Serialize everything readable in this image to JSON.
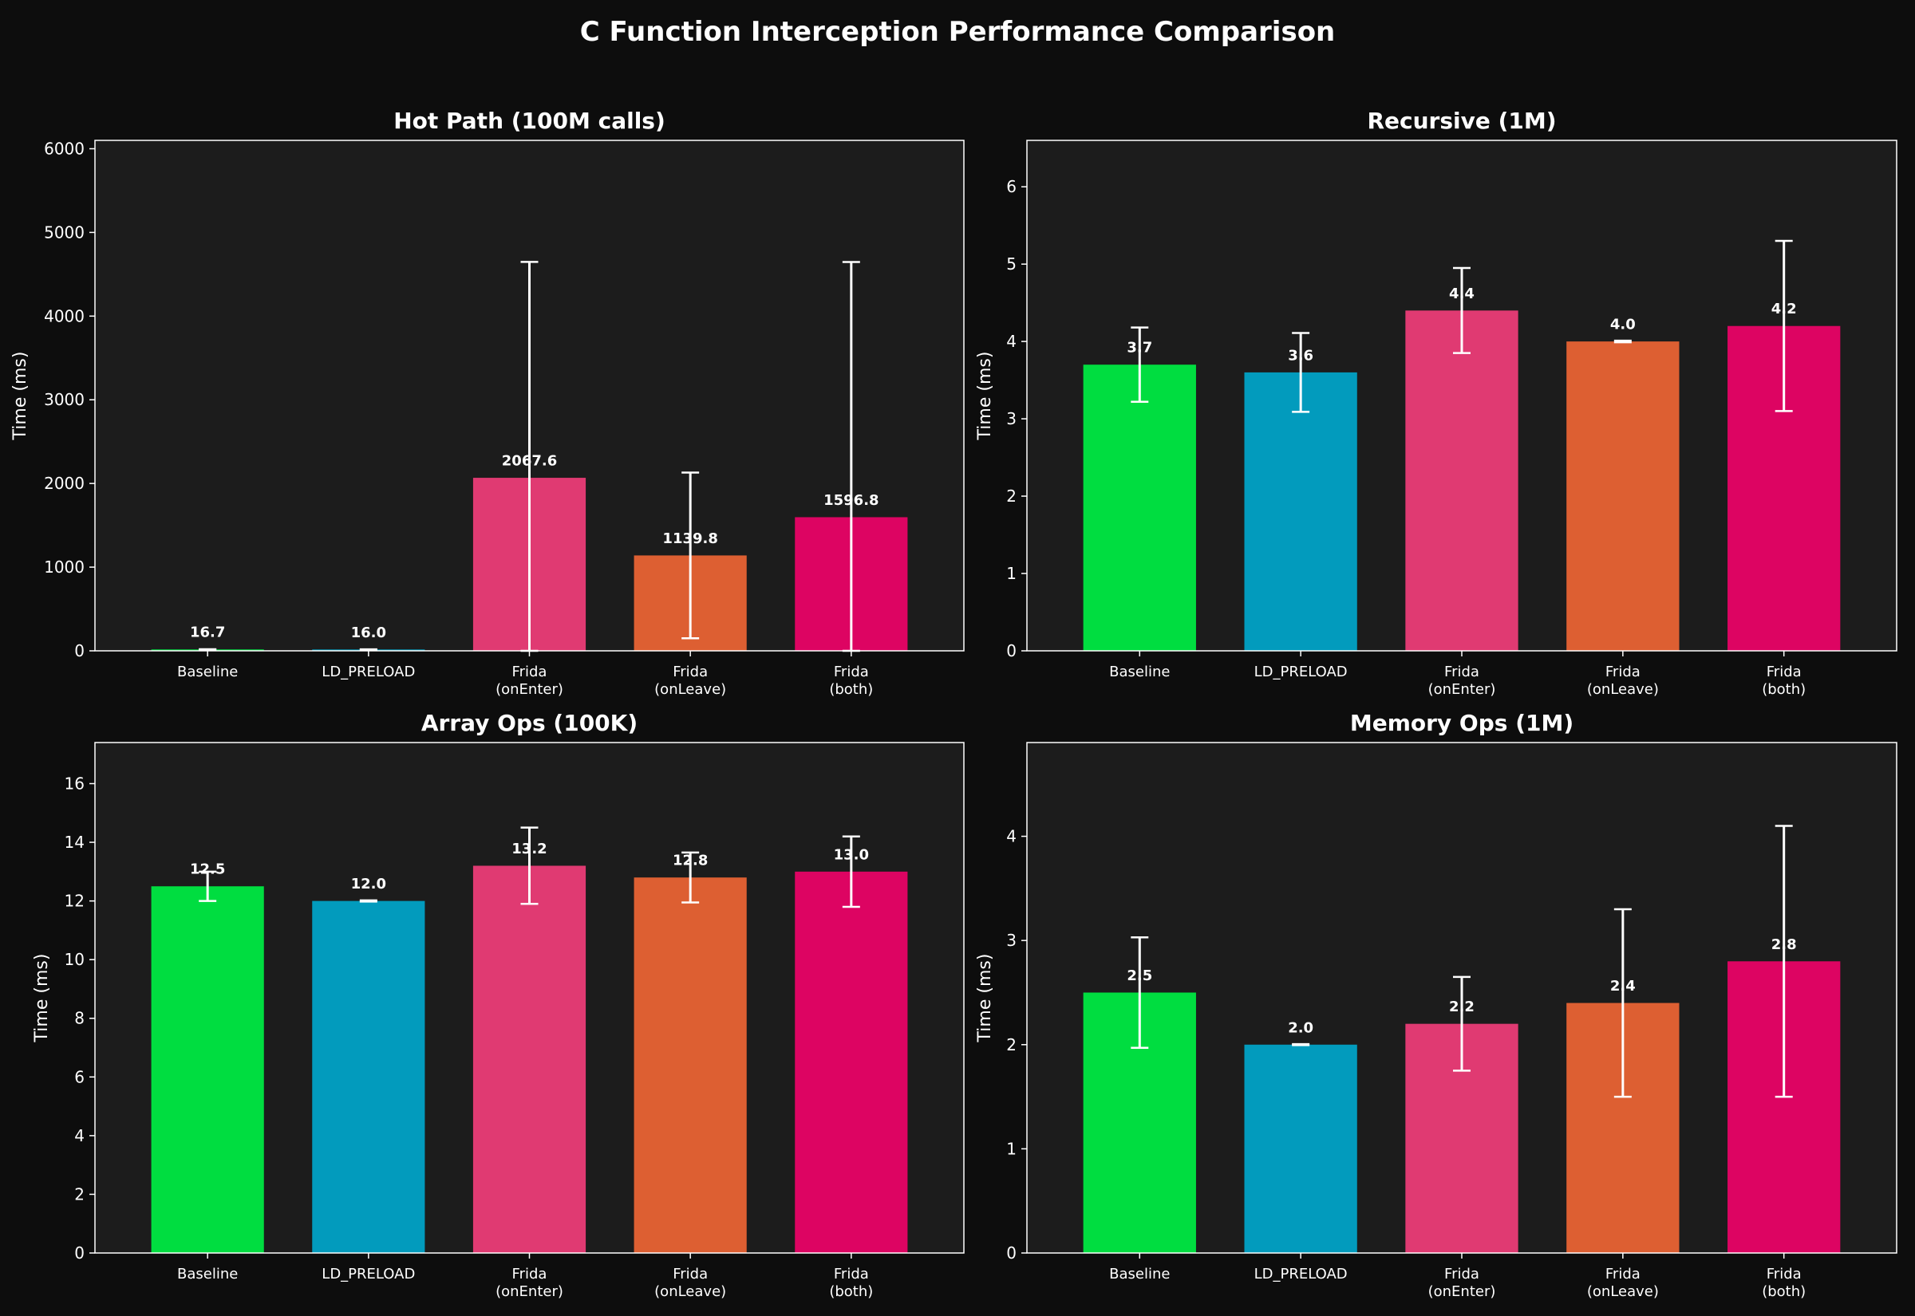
{
  "figure": {
    "title": "C Function Interception Performance Comparison",
    "background": "#0d0d0d",
    "axes_background": "#1c1c1c",
    "text_color": "#ffffff"
  },
  "chart_data": [
    {
      "type": "bar",
      "title": "Hot Path (100M calls)",
      "xlabel": "",
      "ylabel": "Time (ms)",
      "categories": [
        "Baseline",
        "LD_PRELOAD",
        "Frida\n(onEnter)",
        "Frida\n(onLeave)",
        "Frida\n(both)"
      ],
      "values": [
        16.7,
        16.0,
        2067.6,
        1139.8,
        1596.8
      ],
      "errors": [
        2,
        2,
        2580,
        990,
        3050
      ],
      "value_labels": [
        "16.7",
        "16.0",
        "2067.6",
        "1139.8",
        "1596.8"
      ],
      "colors": [
        "#00dd40",
        "#029bbd",
        "#e03a72",
        "#dd5f32",
        "#dd0462"
      ],
      "ylim": [
        0,
        6100
      ],
      "yticks": [
        0,
        1000,
        2000,
        3000,
        4000,
        5000,
        6000
      ],
      "grid": false,
      "legend": "none"
    },
    {
      "type": "bar",
      "title": "Recursive (1M)",
      "xlabel": "",
      "ylabel": "Time (ms)",
      "categories": [
        "Baseline",
        "LD_PRELOAD",
        "Frida\n(onEnter)",
        "Frida\n(onLeave)",
        "Frida\n(both)"
      ],
      "values": [
        3.7,
        3.6,
        4.4,
        4.0,
        4.2
      ],
      "errors": [
        0.48,
        0.51,
        0.55,
        0.01,
        1.1
      ],
      "value_labels": [
        "3.7",
        "3.6",
        "4.4",
        "4.0",
        "4.2"
      ],
      "colors": [
        "#00dd40",
        "#029bbd",
        "#e03a72",
        "#dd5f32",
        "#dd0462"
      ],
      "ylim": [
        0,
        6.6
      ],
      "yticks": [
        0,
        1,
        2,
        3,
        4,
        5,
        6
      ],
      "grid": false,
      "legend": "none"
    },
    {
      "type": "bar",
      "title": "Array Ops (100K)",
      "xlabel": "",
      "ylabel": "Time (ms)",
      "categories": [
        "Baseline",
        "LD_PRELOAD",
        "Frida\n(onEnter)",
        "Frida\n(onLeave)",
        "Frida\n(both)"
      ],
      "values": [
        12.5,
        12.0,
        13.2,
        12.8,
        13.0
      ],
      "errors": [
        0.5,
        0.02,
        1.3,
        0.85,
        1.2
      ],
      "value_labels": [
        "12.5",
        "12.0",
        "13.2",
        "12.8",
        "13.0"
      ],
      "colors": [
        "#00dd40",
        "#029bbd",
        "#e03a72",
        "#dd5f32",
        "#dd0462"
      ],
      "ylim": [
        0,
        17.4
      ],
      "yticks": [
        0,
        2,
        4,
        6,
        8,
        10,
        12,
        14,
        16
      ],
      "grid": false,
      "legend": "none"
    },
    {
      "type": "bar",
      "title": "Memory Ops (1M)",
      "xlabel": "",
      "ylabel": "Time (ms)",
      "categories": [
        "Baseline",
        "LD_PRELOAD",
        "Frida\n(onEnter)",
        "Frida\n(onLeave)",
        "Frida\n(both)"
      ],
      "values": [
        2.5,
        2.0,
        2.2,
        2.4,
        2.8
      ],
      "errors": [
        0.53,
        0.005,
        0.45,
        0.9,
        1.3
      ],
      "value_labels": [
        "2.5",
        "2.0",
        "2.2",
        "2.4",
        "2.8"
      ],
      "colors": [
        "#00dd40",
        "#029bbd",
        "#e03a72",
        "#dd5f32",
        "#dd0462"
      ],
      "ylim": [
        0,
        4.9
      ],
      "yticks": [
        0,
        1,
        2,
        3,
        4
      ],
      "grid": false,
      "legend": "none"
    }
  ]
}
